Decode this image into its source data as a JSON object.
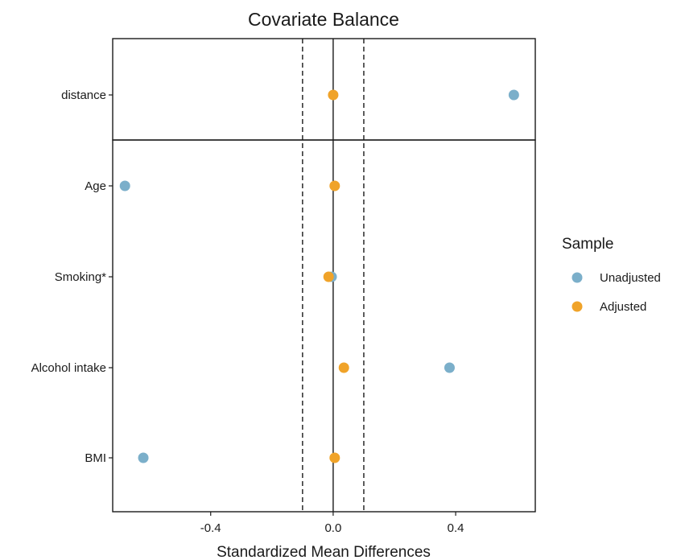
{
  "chart_data": {
    "type": "scatter",
    "title": "Covariate Balance",
    "xlabel": "Standardized Mean Differences",
    "ylabel": "",
    "xlim": [
      -0.72,
      0.66
    ],
    "xticks": [
      -0.4,
      0.0,
      0.4
    ],
    "xtick_labels": [
      "-0.4",
      "0.0",
      "0.4"
    ],
    "threshold_lines": [
      -0.1,
      0.1
    ],
    "zero_line": 0,
    "grid": false,
    "legend_placement": "right",
    "legend_title": "Sample",
    "categories": [
      "distance",
      "Age",
      "Smoking*",
      "Alcohol intake",
      "BMI"
    ],
    "panels": [
      [
        "distance"
      ],
      [
        "Age",
        "Smoking*",
        "Alcohol intake",
        "BMI"
      ]
    ],
    "series": [
      {
        "name": "Unadjusted",
        "color": "#7bafca",
        "values": [
          0.59,
          -0.68,
          -0.005,
          0.38,
          -0.62
        ]
      },
      {
        "name": "Adjusted",
        "color": "#f0a329",
        "values": [
          0.0,
          0.005,
          -0.015,
          0.035,
          0.005
        ]
      }
    ]
  }
}
